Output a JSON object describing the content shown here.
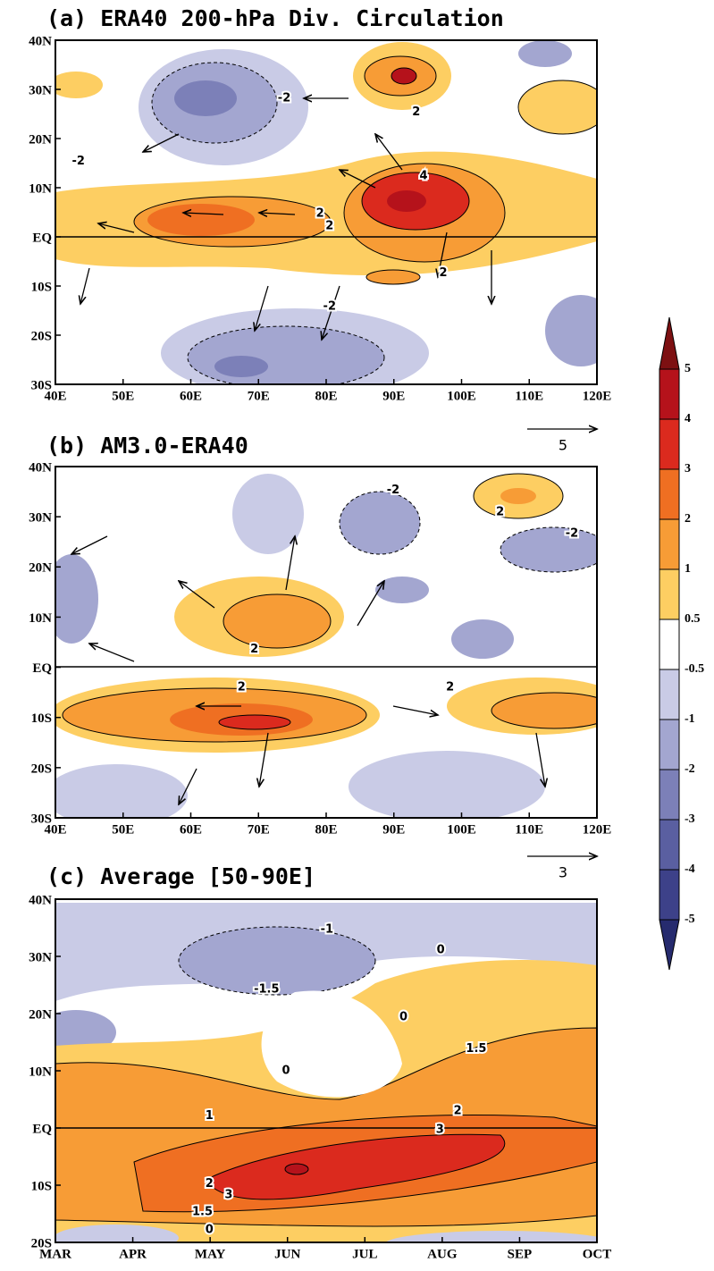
{
  "chart_data": [
    {
      "type": "contour",
      "title": "(a) ERA40 200-hPa Div. Circulation",
      "xlim": [
        40,
        120
      ],
      "ylim": [
        -30,
        40
      ],
      "xticks": [
        {
          "value": 40,
          "label": "40E"
        },
        {
          "value": 50,
          "label": "50E"
        },
        {
          "value": 60,
          "label": "60E"
        },
        {
          "value": 70,
          "label": "70E"
        },
        {
          "value": 80,
          "label": "80E"
        },
        {
          "value": 90,
          "label": "90E"
        },
        {
          "value": 100,
          "label": "100E"
        },
        {
          "value": 110,
          "label": "110E"
        },
        {
          "value": 120,
          "label": "120E"
        }
      ],
      "yticks": [
        {
          "value": 40,
          "label": "40N"
        },
        {
          "value": 30,
          "label": "30N"
        },
        {
          "value": 20,
          "label": "20N"
        },
        {
          "value": 10,
          "label": "10N"
        },
        {
          "value": 0,
          "label": "EQ"
        },
        {
          "value": -10,
          "label": "10S"
        },
        {
          "value": -20,
          "label": "20S"
        },
        {
          "value": -30,
          "label": "30S"
        }
      ],
      "contour_labels": [
        {
          "value": -2,
          "x": 73.8,
          "y": 28.2
        },
        {
          "value": 2,
          "x": 93.3,
          "y": 25.4
        },
        {
          "value": -2,
          "x": 43.4,
          "y": 15.4
        },
        {
          "value": 4,
          "x": 94.4,
          "y": 12.4
        },
        {
          "value": 2,
          "x": 79.1,
          "y": 4.7
        },
        {
          "value": 2,
          "x": 80.5,
          "y": 2.2
        },
        {
          "value": 2,
          "x": 97.3,
          "y": -7.4
        },
        {
          "value": -2,
          "x": 80.5,
          "y": -14.2
        }
      ],
      "reference_vector": 5
    },
    {
      "type": "contour",
      "title": "(b) AM3.0-ERA40",
      "xlim": [
        40,
        120
      ],
      "ylim": [
        -30,
        40
      ],
      "xticks": [
        {
          "value": 40,
          "label": "40E"
        },
        {
          "value": 50,
          "label": "50E"
        },
        {
          "value": 60,
          "label": "60E"
        },
        {
          "value": 70,
          "label": "70E"
        },
        {
          "value": 80,
          "label": "80E"
        },
        {
          "value": 90,
          "label": "90E"
        },
        {
          "value": 100,
          "label": "100E"
        },
        {
          "value": 110,
          "label": "110E"
        },
        {
          "value": 120,
          "label": "120E"
        }
      ],
      "yticks": [
        {
          "value": 40,
          "label": "40N"
        },
        {
          "value": 30,
          "label": "30N"
        },
        {
          "value": 20,
          "label": "20N"
        },
        {
          "value": 10,
          "label": "10N"
        },
        {
          "value": 0,
          "label": "EQ"
        },
        {
          "value": -10,
          "label": "10S"
        },
        {
          "value": -20,
          "label": "20S"
        },
        {
          "value": -30,
          "label": "30S"
        }
      ],
      "contour_labels": [
        {
          "value": -2,
          "x": 89.9,
          "y": 35.3
        },
        {
          "value": 2,
          "x": 105.7,
          "y": 30.9
        },
        {
          "value": -2,
          "x": 116.3,
          "y": 26.6
        },
        {
          "value": 2,
          "x": 69.4,
          "y": 3.6
        },
        {
          "value": 2,
          "x": 67.5,
          "y": -4
        },
        {
          "value": 2,
          "x": 98.3,
          "y": -4
        }
      ],
      "reference_vector": 3
    },
    {
      "type": "contour",
      "title": "(c) Average [50-90E]",
      "xlim": [
        3,
        10
      ],
      "ylim": [
        -20,
        40
      ],
      "xticks": [
        {
          "value": 3,
          "label": "MAR"
        },
        {
          "value": 4,
          "label": "APR"
        },
        {
          "value": 5,
          "label": "MAY"
        },
        {
          "value": 6,
          "label": "JUN"
        },
        {
          "value": 7,
          "label": "JUL"
        },
        {
          "value": 8,
          "label": "AUG"
        },
        {
          "value": 9,
          "label": "SEP"
        },
        {
          "value": 10,
          "label": "OCT"
        }
      ],
      "yticks": [
        {
          "value": 40,
          "label": "40N"
        },
        {
          "value": 30,
          "label": "30N"
        },
        {
          "value": 20,
          "label": "20N"
        },
        {
          "value": 10,
          "label": "10N"
        },
        {
          "value": 0,
          "label": "EQ"
        },
        {
          "value": -10,
          "label": "10S"
        },
        {
          "value": -20,
          "label": "20S"
        }
      ],
      "contour_labels": [
        {
          "value": -1,
          "x": 6.51,
          "y": 34.7
        },
        {
          "value": -1.5,
          "x": 5.73,
          "y": 24.2
        },
        {
          "value": 0,
          "x": 7.98,
          "y": 31.1
        },
        {
          "value": 0,
          "x": 7.5,
          "y": 19.4
        },
        {
          "value": 0,
          "x": 5.98,
          "y": 10
        },
        {
          "value": 1.5,
          "x": 8.44,
          "y": 13.8
        },
        {
          "value": 2,
          "x": 8.2,
          "y": 3
        },
        {
          "value": 3,
          "x": 7.97,
          "y": -0.3
        },
        {
          "value": 1,
          "x": 4.99,
          "y": 2.1
        },
        {
          "value": 3,
          "x": 5.24,
          "y": -11.7
        },
        {
          "value": 2,
          "x": 4.99,
          "y": -9.8
        },
        {
          "value": 1.5,
          "x": 4.9,
          "y": -14.7
        },
        {
          "value": 0,
          "x": 4.99,
          "y": -17.8
        }
      ]
    }
  ],
  "colorbar": {
    "levels": [
      5,
      4,
      3,
      2,
      1,
      0.5,
      -0.5,
      -1,
      -2,
      -3,
      -4,
      -5
    ],
    "colors": [
      "#7d1012",
      "#b5121b",
      "#db2a1e",
      "#ef6f22",
      "#f79c36",
      "#fdce62",
      "#ffffff",
      "#c9cbe6",
      "#a3a6d0",
      "#7c80b8",
      "#5a5fa1",
      "#3d4189",
      "#262b6e"
    ]
  }
}
